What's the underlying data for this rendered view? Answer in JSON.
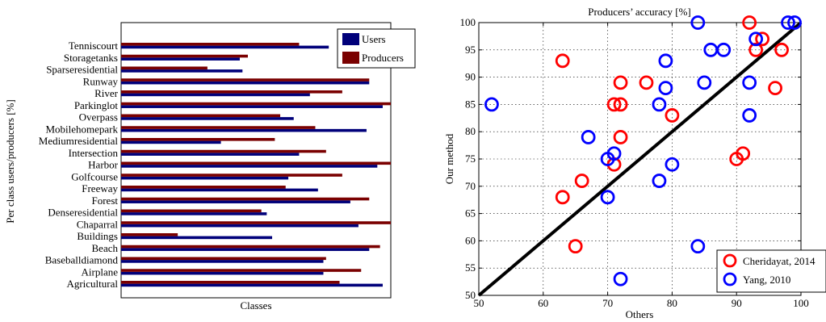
{
  "chart_data": [
    {
      "type": "bar",
      "orientation": "horizontal",
      "xlabel": "Classes",
      "ylabel": "Per class users/producers [%]",
      "categories": [
        "Tenniscourt",
        "Storagetanks",
        "Sparseresidential",
        "Runway",
        "River",
        "Parkinglot",
        "Overpass",
        "Mobilehomepark",
        "Mediumresidential",
        "Intersection",
        "Harbor",
        "Golfcourse",
        "Freeway",
        "Forest",
        "Denseresidential",
        "Chaparral",
        "Buildings",
        "Beach",
        "Baseballdiamond",
        "Airplane",
        "Agricultural"
      ],
      "xlim": [
        0,
        1
      ],
      "grid": false,
      "legend_position": "top-right",
      "series": [
        {
          "name": "Users",
          "color": "#00007a",
          "values": [
            0.77,
            0.44,
            0.45,
            0.92,
            0.7,
            0.97,
            0.64,
            0.91,
            0.37,
            0.66,
            0.95,
            0.62,
            0.73,
            0.85,
            0.54,
            0.88,
            0.56,
            0.92,
            0.75,
            0.75,
            0.97
          ]
        },
        {
          "name": "Producers",
          "color": "#7a0000",
          "values": [
            0.66,
            0.47,
            0.32,
            0.92,
            0.82,
            1.0,
            0.59,
            0.72,
            0.57,
            0.76,
            1.0,
            0.82,
            0.61,
            0.92,
            0.52,
            1.0,
            0.21,
            0.96,
            0.76,
            0.89,
            0.81
          ]
        }
      ]
    },
    {
      "type": "scatter",
      "title": "Producers’ accuracy [%]",
      "xlabel": "Others",
      "ylabel": "Our method",
      "xlim": [
        50,
        100
      ],
      "ylim": [
        50,
        100
      ],
      "xticks": [
        "50",
        "60",
        "70",
        "80",
        "90",
        "100"
      ],
      "yticks": [
        "50",
        "55",
        "60",
        "65",
        "70",
        "75",
        "80",
        "85",
        "90",
        "95",
        "100"
      ],
      "grid": true,
      "legend_position": "bottom-right",
      "reference_line": {
        "from": [
          50,
          50
        ],
        "to": [
          100,
          100
        ],
        "color": "#000000"
      },
      "series": [
        {
          "name": "Cheridayat, 2014",
          "color": "#ff0000",
          "points": [
            [
              63,
              93
            ],
            [
              63,
              68
            ],
            [
              65,
              59
            ],
            [
              66,
              71
            ],
            [
              71,
              74
            ],
            [
              71,
              85
            ],
            [
              72,
              85
            ],
            [
              72,
              89
            ],
            [
              72,
              79
            ],
            [
              76,
              89
            ],
            [
              80,
              83
            ],
            [
              90,
              75
            ],
            [
              91,
              76
            ],
            [
              92,
              100
            ],
            [
              93,
              95
            ],
            [
              94,
              97
            ],
            [
              96,
              88
            ],
            [
              97,
              95
            ]
          ]
        },
        {
          "name": "Yang, 2010",
          "color": "#0000ff",
          "points": [
            [
              52,
              85
            ],
            [
              67,
              79
            ],
            [
              70,
              75
            ],
            [
              70,
              68
            ],
            [
              71,
              76
            ],
            [
              72,
              53
            ],
            [
              78,
              85
            ],
            [
              78,
              71
            ],
            [
              79,
              93
            ],
            [
              79,
              88
            ],
            [
              80,
              74
            ],
            [
              84,
              100
            ],
            [
              84,
              59
            ],
            [
              85,
              89
            ],
            [
              86,
              95
            ],
            [
              88,
              95
            ],
            [
              92,
              89
            ],
            [
              92,
              83
            ],
            [
              93,
              97
            ],
            [
              98,
              100
            ],
            [
              99,
              100
            ]
          ]
        }
      ]
    }
  ]
}
